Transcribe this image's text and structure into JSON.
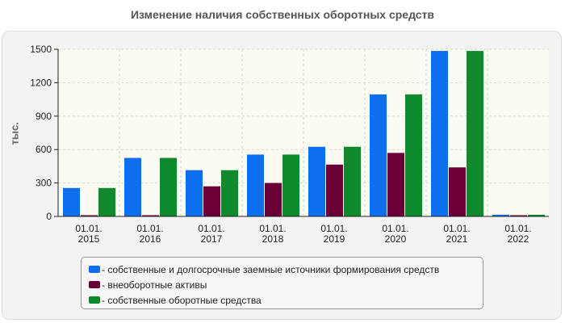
{
  "chart_data": {
    "type": "bar",
    "title": "Изменение наличия собственных оборотных средств",
    "ylabel": "тыс.",
    "xlabel": "",
    "ylim": [
      0,
      1500
    ],
    "yticks": [
      0,
      300,
      600,
      900,
      1200,
      1500
    ],
    "categories": [
      [
        "01.01.",
        "2015"
      ],
      [
        "01.01.",
        "2016"
      ],
      [
        "01.01.",
        "2017"
      ],
      [
        "01.01.",
        "2018"
      ],
      [
        "01.01.",
        "2019"
      ],
      [
        "01.01.",
        "2020"
      ],
      [
        "01.01.",
        "2021"
      ],
      [
        "01.01.",
        "2022"
      ]
    ],
    "series": [
      {
        "name": "- собственные и долгосрочные заемные источники формирования средств",
        "color": "#0d6ef0",
        "values": [
          255,
          525,
          415,
          555,
          625,
          1095,
          1485,
          15
        ]
      },
      {
        "name": "- внеоборотные активы",
        "color": "#6b0036",
        "values": [
          5,
          5,
          270,
          300,
          465,
          570,
          440,
          5
        ]
      },
      {
        "name": "- собственные оборотные средства",
        "color": "#0e8a2c",
        "values": [
          255,
          525,
          415,
          555,
          625,
          1095,
          1485,
          15
        ]
      }
    ],
    "grid": true,
    "legend_position": "bottom"
  }
}
